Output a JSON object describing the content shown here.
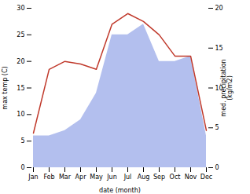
{
  "chart_data": {
    "type": "area_line",
    "categories": [
      "Jan",
      "Feb",
      "Mar",
      "Apr",
      "May",
      "Jun",
      "Jul",
      "Aug",
      "Sep",
      "Oct",
      "Nov",
      "Dec"
    ],
    "series": [
      {
        "type": "area",
        "color": "#b3bfee",
        "values": [
          6,
          6,
          7,
          9,
          14,
          25,
          25,
          27,
          20,
          20,
          21,
          6
        ]
      },
      {
        "type": "line",
        "color": "#c0392b",
        "values": [
          6.5,
          18.5,
          20.0,
          19.5,
          18.5,
          27.0,
          29.0,
          27.5,
          25.0,
          21.0,
          21.0,
          7.0
        ]
      }
    ],
    "xlabel": "date (month)",
    "ylabel": "max temp (C)",
    "y2label": "med. precipitation\n(kg/m2)",
    "ylim": [
      0,
      30
    ],
    "yticks": [
      0,
      5,
      10,
      15,
      20,
      25,
      30
    ],
    "y2lim": [
      0,
      20
    ],
    "y2ticks": [
      0,
      5,
      10,
      15,
      20
    ],
    "grid": false
  }
}
